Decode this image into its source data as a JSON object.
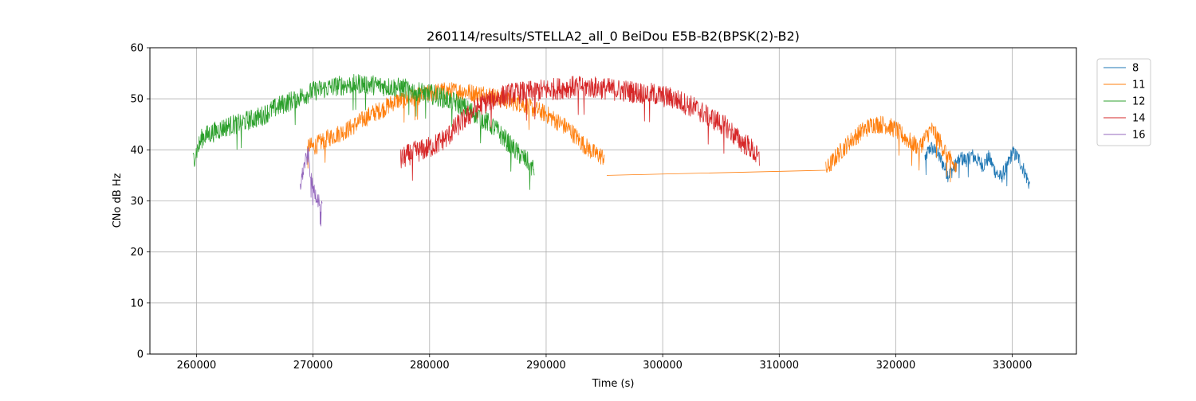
{
  "chart_data": {
    "type": "line",
    "title": "260114/results/STELLA2_all_0 BeiDou E5B-B2(BPSK(2)-B2)",
    "xlabel": "Time (s)",
    "ylabel": "CNo dB Hz",
    "xlim": [
      256000,
      335500
    ],
    "ylim": [
      0,
      60
    ],
    "xticks": [
      260000,
      270000,
      280000,
      290000,
      300000,
      310000,
      320000,
      330000
    ],
    "xtick_labels": [
      "260000",
      "270000",
      "280000",
      "290000",
      "300000",
      "310000",
      "320000",
      "330000"
    ],
    "yticks": [
      0,
      10,
      20,
      30,
      40,
      50,
      60
    ],
    "ytick_labels": [
      "0",
      "10",
      "20",
      "30",
      "40",
      "50",
      "60"
    ],
    "grid": true,
    "legend_position": "outside-top-right",
    "series": [
      {
        "name": "8",
        "color": "#1f77b4",
        "noise": 1.5,
        "segments": [
          [
            [
              322500,
              38.5
            ],
            [
              323000,
              40.5
            ],
            [
              323500,
              39.5
            ],
            [
              324000,
              37.5
            ],
            [
              324500,
              35.0
            ],
            [
              325000,
              36.5
            ],
            [
              325500,
              38.5
            ],
            [
              326000,
              38.0
            ],
            [
              326500,
              39.0
            ],
            [
              327000,
              38.0
            ],
            [
              327500,
              37.0
            ],
            [
              328000,
              38.5
            ],
            [
              328500,
              36.0
            ],
            [
              329000,
              34.5
            ],
            [
              329500,
              36.5
            ],
            [
              330000,
              39.5
            ],
            [
              330500,
              38.5
            ],
            [
              331000,
              36.0
            ],
            [
              331500,
              33.0
            ]
          ]
        ]
      },
      {
        "name": "11",
        "color": "#ff7f0e",
        "noise": 1.8,
        "segments": [
          [
            [
              269500,
              41.0
            ],
            [
              270000,
              40.5
            ],
            [
              271000,
              42.0
            ],
            [
              272000,
              43.0
            ],
            [
              273000,
              44.0
            ],
            [
              274000,
              45.5
            ],
            [
              275000,
              47.0
            ],
            [
              276000,
              48.0
            ],
            [
              277000,
              49.5
            ],
            [
              278000,
              50.0
            ],
            [
              279000,
              50.5
            ],
            [
              280000,
              51.0
            ],
            [
              281000,
              51.5
            ],
            [
              282000,
              51.5
            ],
            [
              283000,
              51.5
            ],
            [
              284000,
              51.0
            ],
            [
              285000,
              51.0
            ],
            [
              286000,
              50.0
            ],
            [
              287000,
              49.5
            ],
            [
              288000,
              49.0
            ],
            [
              289000,
              48.0
            ],
            [
              290000,
              47.0
            ],
            [
              291000,
              45.5
            ],
            [
              292000,
              44.0
            ],
            [
              293000,
              41.5
            ],
            [
              294000,
              39.5
            ],
            [
              295000,
              38.5
            ]
          ],
          [
            [
              295200,
              35.0
            ],
            [
              314000,
              36.0
            ]
          ],
          [
            [
              314000,
              36.0
            ],
            [
              315000,
              39.0
            ],
            [
              316000,
              41.5
            ],
            [
              317000,
              43.5
            ],
            [
              318000,
              45.0
            ],
            [
              319000,
              45.0
            ],
            [
              320000,
              44.0
            ],
            [
              321000,
              42.0
            ],
            [
              322000,
              40.5
            ],
            [
              323000,
              44.0
            ],
            [
              323500,
              43.0
            ],
            [
              324000,
              40.5
            ],
            [
              324500,
              39.0
            ],
            [
              325200,
              36.0
            ]
          ]
        ]
      },
      {
        "name": "12",
        "color": "#2ca02c",
        "noise": 2.0,
        "segments": [
          [
            [
              259700,
              38.0
            ],
            [
              260500,
              42.5
            ],
            [
              261500,
              43.5
            ],
            [
              262500,
              44.5
            ],
            [
              264000,
              45.5
            ],
            [
              265500,
              46.5
            ],
            [
              267000,
              48.5
            ],
            [
              268500,
              50.0
            ],
            [
              270000,
              51.5
            ],
            [
              272000,
              52.5
            ],
            [
              274000,
              53.0
            ],
            [
              276000,
              52.5
            ],
            [
              278000,
              52.0
            ],
            [
              280000,
              51.0
            ],
            [
              282000,
              49.5
            ],
            [
              284000,
              47.0
            ],
            [
              285500,
              44.5
            ],
            [
              286500,
              42.0
            ],
            [
              287500,
              39.5
            ],
            [
              288500,
              37.5
            ],
            [
              289000,
              36.0
            ]
          ]
        ]
      },
      {
        "name": "14",
        "color": "#d62728",
        "noise": 2.2,
        "segments": [
          [
            [
              277500,
              38.0
            ],
            [
              278500,
              39.5
            ],
            [
              279500,
              40.0
            ],
            [
              280500,
              41.0
            ],
            [
              281500,
              42.5
            ],
            [
              282500,
              45.0
            ],
            [
              283500,
              47.0
            ],
            [
              284500,
              49.0
            ],
            [
              285500,
              50.0
            ],
            [
              287000,
              51.0
            ],
            [
              289000,
              51.5
            ],
            [
              291000,
              52.0
            ],
            [
              293000,
              52.5
            ],
            [
              295000,
              52.0
            ],
            [
              297000,
              51.5
            ],
            [
              299000,
              51.0
            ],
            [
              301000,
              50.0
            ],
            [
              302500,
              48.5
            ],
            [
              304000,
              46.5
            ],
            [
              305500,
              44.5
            ],
            [
              306500,
              42.0
            ],
            [
              307500,
              40.5
            ],
            [
              308300,
              38.0
            ]
          ]
        ]
      },
      {
        "name": "16",
        "color": "#9467bd",
        "noise": 1.6,
        "segments": [
          [
            [
              268900,
              33.0
            ],
            [
              269300,
              37.5
            ],
            [
              269600,
              39.0
            ],
            [
              269800,
              35.0
            ],
            [
              270100,
              32.0
            ],
            [
              270400,
              30.5
            ],
            [
              270800,
              28.5
            ]
          ]
        ]
      }
    ]
  }
}
